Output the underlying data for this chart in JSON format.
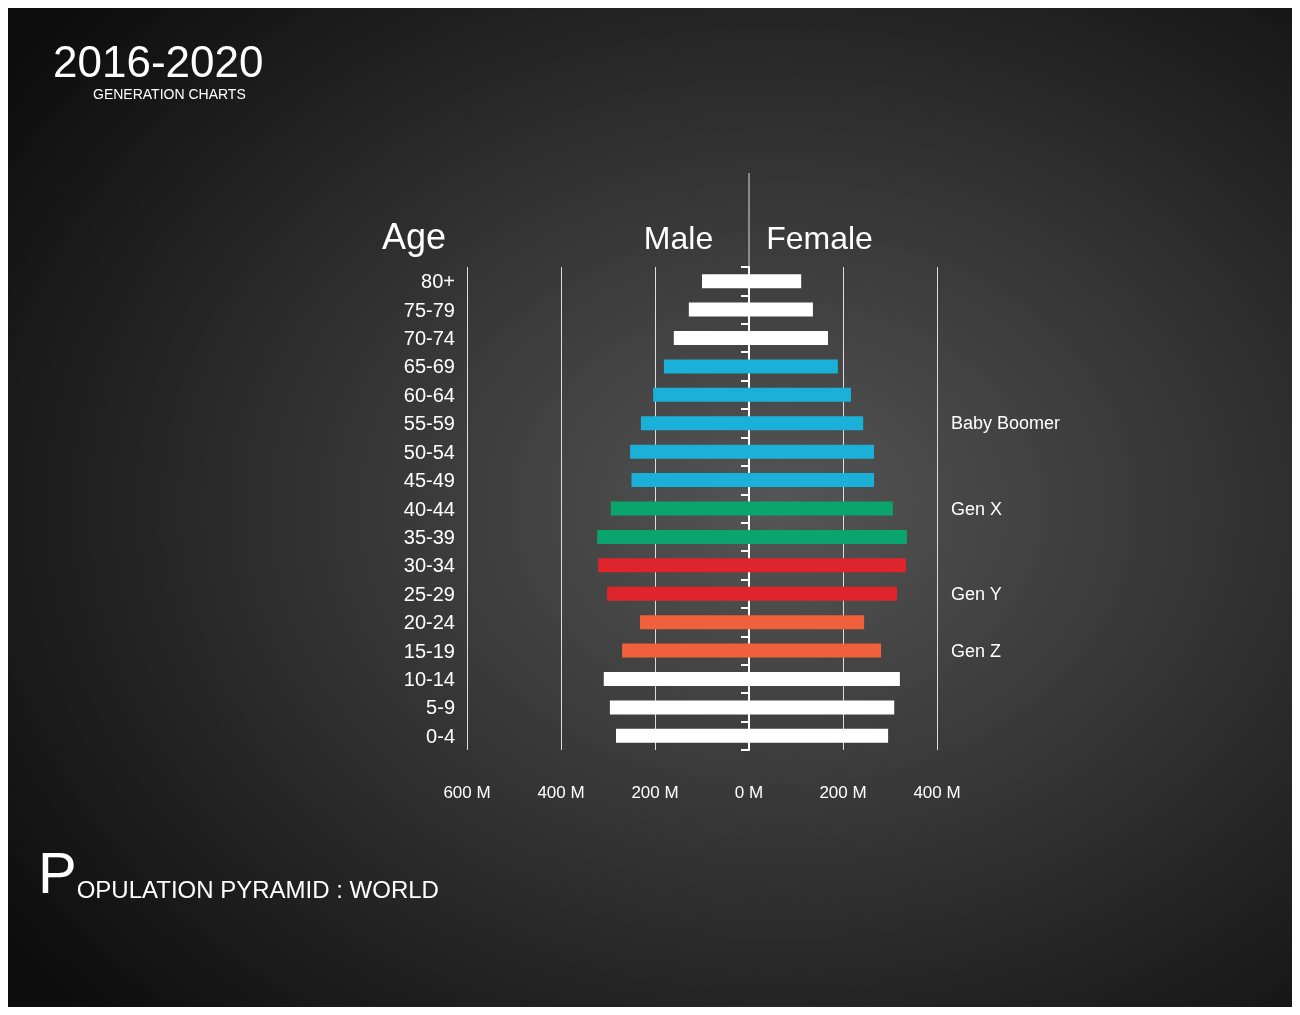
{
  "chart_data": {
    "type": "bar",
    "orientation": "horizontal",
    "title": "2016-2020",
    "subtitle": "GENERATION CHARTS",
    "ylabel": "Age",
    "categories": [
      "80+",
      "75-79",
      "70-74",
      "65-69",
      "60-64",
      "55-59",
      "50-54",
      "45-49",
      "40-44",
      "35-39",
      "30-34",
      "25-29",
      "20-24",
      "15-19",
      "10-14",
      "5-9",
      "0-4"
    ],
    "series": [
      {
        "name": "Male",
        "values": [
          -100,
          -128,
          -160,
          -181,
          -204,
          -230,
          -253,
          -250,
          -294,
          -323,
          -321,
          -302,
          -232,
          -270,
          -309,
          -296,
          -283
        ],
        "colors": [
          "#ffffff",
          "#ffffff",
          "#ffffff",
          "#1ab0d8",
          "#1ab0d8",
          "#1ab0d8",
          "#1ab0d8",
          "#1ab0d8",
          "#0aa56e",
          "#0aa56e",
          "#e0242c",
          "#e0242c",
          "#f0603a",
          "#f0603a",
          "#ffffff",
          "#ffffff",
          "#ffffff"
        ]
      },
      {
        "name": "Female",
        "values": [
          111,
          136,
          168,
          189,
          217,
          243,
          266,
          266,
          306,
          336,
          334,
          315,
          245,
          281,
          321,
          309,
          296
        ],
        "colors": [
          "#ffffff",
          "#ffffff",
          "#ffffff",
          "#1ab0d8",
          "#1ab0d8",
          "#1ab0d8",
          "#1ab0d8",
          "#1ab0d8",
          "#0aa56e",
          "#0aa56e",
          "#e0242c",
          "#e0242c",
          "#f0603a",
          "#f0603a",
          "#ffffff",
          "#ffffff",
          "#ffffff"
        ]
      }
    ],
    "xlim": [
      -600,
      400
    ],
    "stacked": true,
    "xticks": [
      {
        "value": -600,
        "label": "600 M"
      },
      {
        "value": -400,
        "label": "400 M"
      },
      {
        "value": -200,
        "label": "200 M"
      },
      {
        "value": 0,
        "label": "0 M"
      },
      {
        "value": 200,
        "label": "200 M"
      },
      {
        "value": 400,
        "label": "400 M"
      }
    ],
    "grid": "x",
    "legend": false,
    "annotations": [
      "Baby Boomer",
      "Gen X",
      "Gen Y",
      "Gen Z",
      "POPULATION PYRAMID : WORLD"
    ]
  }
}
